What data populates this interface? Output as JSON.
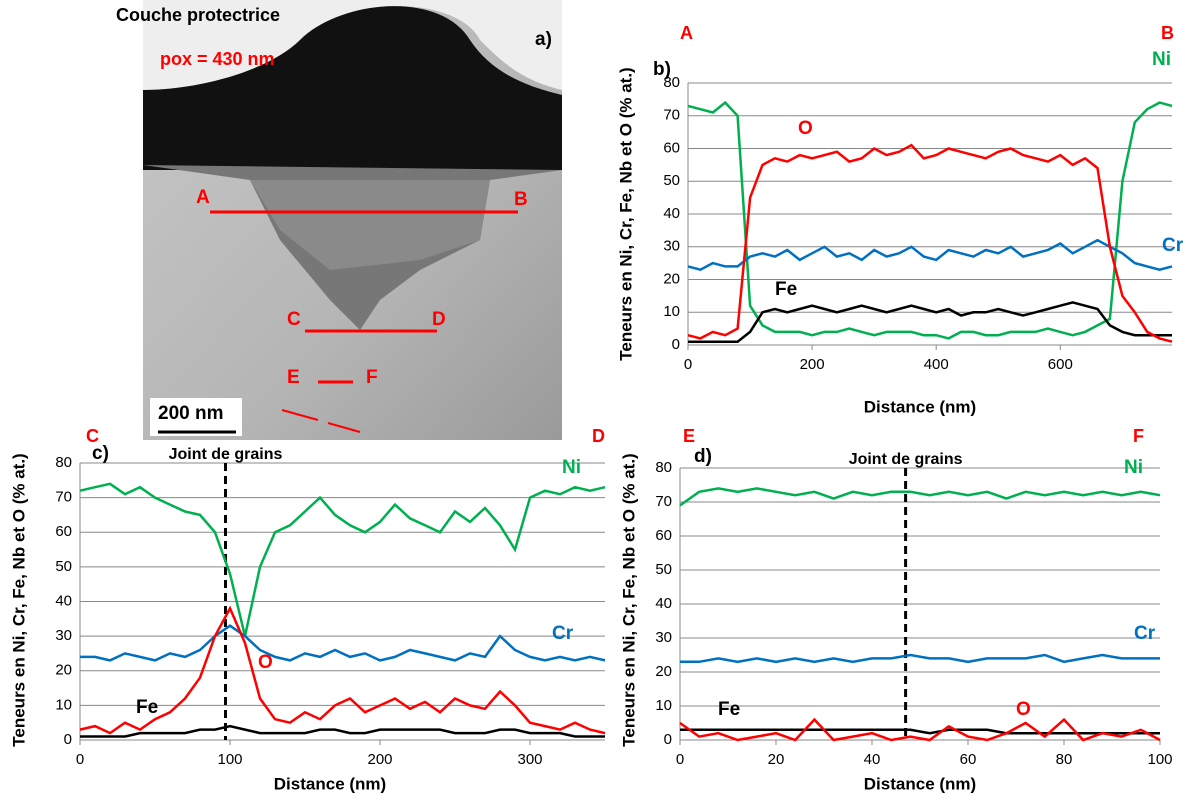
{
  "micrograph": {
    "title": "Couche protectrice",
    "note": "pox = 430 nm",
    "panel": "a)",
    "points": [
      "A",
      "B",
      "C",
      "D",
      "E",
      "F"
    ],
    "scale": "200 nm"
  },
  "chart_data": [
    {
      "type": "line",
      "panel": "b)",
      "corner_labels": [
        "A",
        "B"
      ],
      "x_label": "Distance (nm)",
      "y_label": "Teneurs en Ni, Cr, Fe, Nb et O (% at.)",
      "xlim": [
        0,
        780
      ],
      "xticks": [
        0,
        200,
        400,
        600
      ],
      "ylim": [
        0,
        80
      ],
      "yticks": [
        0,
        10,
        20,
        30,
        40,
        50,
        60,
        70,
        80
      ],
      "grid": true,
      "x": [
        0,
        20,
        40,
        60,
        80,
        100,
        120,
        140,
        160,
        180,
        200,
        220,
        240,
        260,
        280,
        300,
        320,
        340,
        360,
        380,
        400,
        420,
        440,
        460,
        480,
        500,
        520,
        540,
        560,
        580,
        600,
        620,
        640,
        660,
        680,
        700,
        720,
        740,
        760,
        780
      ],
      "series": [
        {
          "name": "Ni",
          "color": "#00b050",
          "values": [
            73,
            72,
            71,
            74,
            70,
            12,
            6,
            4,
            4,
            4,
            3,
            4,
            4,
            5,
            4,
            3,
            4,
            4,
            4,
            3,
            3,
            2,
            4,
            4,
            3,
            3,
            4,
            4,
            4,
            5,
            4,
            3,
            4,
            6,
            8,
            50,
            68,
            72,
            74,
            73
          ]
        },
        {
          "name": "Cr",
          "color": "#0070c0",
          "values": [
            24,
            23,
            25,
            24,
            24,
            27,
            28,
            27,
            29,
            26,
            28,
            30,
            27,
            28,
            26,
            29,
            27,
            28,
            30,
            27,
            26,
            29,
            28,
            27,
            29,
            28,
            30,
            27,
            28,
            29,
            31,
            28,
            30,
            32,
            30,
            28,
            25,
            24,
            23,
            24
          ]
        },
        {
          "name": "Fe",
          "color": "#000000",
          "values": [
            1,
            1,
            1,
            1,
            1,
            4,
            10,
            11,
            10,
            11,
            12,
            11,
            10,
            11,
            12,
            11,
            10,
            11,
            12,
            11,
            10,
            11,
            9,
            10,
            10,
            11,
            10,
            9,
            10,
            11,
            12,
            13,
            12,
            11,
            6,
            4,
            3,
            3,
            3,
            3
          ]
        },
        {
          "name": "O",
          "color": "#ff0000",
          "values": [
            3,
            2,
            4,
            3,
            5,
            45,
            55,
            57,
            56,
            58,
            57,
            58,
            59,
            56,
            57,
            60,
            58,
            59,
            61,
            57,
            58,
            60,
            59,
            58,
            57,
            59,
            60,
            58,
            57,
            56,
            58,
            55,
            57,
            54,
            30,
            15,
            10,
            4,
            2,
            1
          ]
        }
      ]
    },
    {
      "type": "line",
      "panel": "c)",
      "corner_labels": [
        "C",
        "D"
      ],
      "x_label": "Distance (nm)",
      "y_label": "Teneurs en Ni, Cr, Fe, Nb et O (% at.)",
      "annotation": {
        "label": "Joint de grains",
        "x": 97
      },
      "xlim": [
        0,
        350
      ],
      "xticks": [
        0,
        100,
        200,
        300
      ],
      "ylim": [
        0,
        80
      ],
      "yticks": [
        0,
        10,
        20,
        30,
        40,
        50,
        60,
        70,
        80
      ],
      "grid": true,
      "x": [
        0,
        10,
        20,
        30,
        40,
        50,
        60,
        70,
        80,
        90,
        100,
        110,
        120,
        130,
        140,
        150,
        160,
        170,
        180,
        190,
        200,
        210,
        220,
        230,
        240,
        250,
        260,
        270,
        280,
        290,
        300,
        310,
        320,
        330,
        340,
        350
      ],
      "series": [
        {
          "name": "Ni",
          "color": "#00b050",
          "values": [
            72,
            73,
            74,
            71,
            73,
            70,
            68,
            66,
            65,
            60,
            48,
            30,
            50,
            60,
            62,
            66,
            70,
            65,
            62,
            60,
            63,
            68,
            64,
            62,
            60,
            66,
            63,
            67,
            62,
            55,
            70,
            72,
            71,
            73,
            72,
            73
          ]
        },
        {
          "name": "Cr",
          "color": "#0070c0",
          "values": [
            24,
            24,
            23,
            25,
            24,
            23,
            25,
            24,
            26,
            30,
            33,
            30,
            26,
            24,
            23,
            25,
            24,
            26,
            24,
            25,
            23,
            24,
            26,
            25,
            24,
            23,
            25,
            24,
            30,
            26,
            24,
            23,
            24,
            23,
            24,
            23
          ]
        },
        {
          "name": "Fe",
          "color": "#000000",
          "values": [
            1,
            1,
            1,
            1,
            2,
            2,
            2,
            2,
            3,
            3,
            4,
            3,
            2,
            2,
            2,
            2,
            3,
            3,
            2,
            2,
            3,
            3,
            3,
            3,
            3,
            2,
            2,
            2,
            3,
            3,
            2,
            2,
            2,
            1,
            1,
            1
          ]
        },
        {
          "name": "O",
          "color": "#ff0000",
          "values": [
            3,
            4,
            2,
            5,
            3,
            6,
            8,
            12,
            18,
            30,
            38,
            28,
            12,
            6,
            5,
            8,
            6,
            10,
            12,
            8,
            10,
            12,
            9,
            11,
            8,
            12,
            10,
            9,
            14,
            10,
            5,
            4,
            3,
            5,
            3,
            2
          ]
        }
      ]
    },
    {
      "type": "line",
      "panel": "d)",
      "corner_labels": [
        "E",
        "F"
      ],
      "x_label": "Distance (nm)",
      "y_label": "Teneurs en Ni, Cr, Fe, Nb et O (% at.)",
      "annotation": {
        "label": "Joint de grains",
        "x": 47
      },
      "xlim": [
        0,
        100
      ],
      "xticks": [
        0,
        20,
        40,
        60,
        80,
        100
      ],
      "ylim": [
        0,
        80
      ],
      "yticks": [
        0,
        10,
        20,
        30,
        40,
        50,
        60,
        70,
        80
      ],
      "grid": true,
      "x": [
        0,
        4,
        8,
        12,
        16,
        20,
        24,
        28,
        32,
        36,
        40,
        44,
        48,
        52,
        56,
        60,
        64,
        68,
        72,
        76,
        80,
        84,
        88,
        92,
        96,
        100
      ],
      "series": [
        {
          "name": "Ni",
          "color": "#00b050",
          "values": [
            69,
            73,
            74,
            73,
            74,
            73,
            72,
            73,
            71,
            73,
            72,
            73,
            73,
            72,
            73,
            72,
            73,
            71,
            73,
            72,
            73,
            72,
            73,
            72,
            73,
            72
          ]
        },
        {
          "name": "Cr",
          "color": "#0070c0",
          "values": [
            23,
            23,
            24,
            23,
            24,
            23,
            24,
            23,
            24,
            23,
            24,
            24,
            25,
            24,
            24,
            23,
            24,
            24,
            24,
            25,
            23,
            24,
            25,
            24,
            24,
            24
          ]
        },
        {
          "name": "Fe",
          "color": "#000000",
          "values": [
            3,
            3,
            3,
            3,
            3,
            3,
            3,
            3,
            3,
            3,
            3,
            3,
            3,
            2,
            3,
            3,
            3,
            2,
            2,
            2,
            2,
            2,
            2,
            2,
            2,
            2
          ]
        },
        {
          "name": "O",
          "color": "#ff0000",
          "values": [
            5,
            1,
            2,
            0,
            1,
            2,
            0,
            6,
            0,
            1,
            2,
            0,
            1,
            0,
            4,
            1,
            0,
            2,
            5,
            1,
            6,
            0,
            2,
            1,
            3,
            0
          ]
        }
      ]
    }
  ]
}
